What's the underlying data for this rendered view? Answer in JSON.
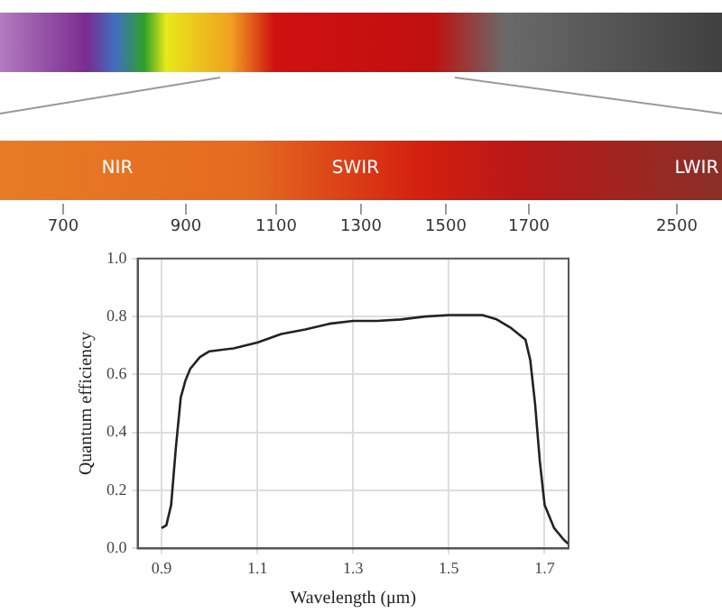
{
  "chart_data": {
    "type": "line",
    "xlabel": "Wavelength (μm)",
    "ylabel": "Quantum efficiency",
    "annotations": [
      "NIR",
      "SWIR",
      "LWIR",
      "700",
      "900",
      "1100",
      "1300",
      "1500",
      "1700",
      "2500"
    ],
    "series": [
      {
        "color": "#222222",
        "x": [
          0.9,
          0.91,
          0.92,
          0.93,
          0.94,
          0.95,
          0.96,
          0.98,
          1.0,
          1.05,
          1.1,
          1.15,
          1.2,
          1.25,
          1.3,
          1.35,
          1.4,
          1.45,
          1.5,
          1.55,
          1.57,
          1.6,
          1.63,
          1.66,
          1.67,
          1.68,
          1.69,
          1.7,
          1.72,
          1.74,
          1.75
        ],
        "values": [
          0.07,
          0.08,
          0.15,
          0.35,
          0.52,
          0.58,
          0.62,
          0.66,
          0.68,
          0.69,
          0.71,
          0.74,
          0.755,
          0.775,
          0.785,
          0.785,
          0.79,
          0.8,
          0.805,
          0.805,
          0.805,
          0.79,
          0.76,
          0.72,
          0.65,
          0.5,
          0.3,
          0.15,
          0.07,
          0.03,
          0.015
        ]
      }
    ],
    "xlim": [
      0.85,
      1.75
    ],
    "xticks": [
      0.9,
      1.1,
      1.3,
      1.5,
      1.7
    ],
    "ylim": [
      0,
      1
    ],
    "yticks": [
      {
        "value": 0,
        "label": "0.0"
      },
      {
        "value": 0.2,
        "label": "0.2"
      },
      {
        "value": 0.4,
        "label": "0.4"
      },
      {
        "value": 0.6,
        "label": "0.6"
      },
      {
        "value": 0.8,
        "label": "0.8"
      },
      {
        "value": 1,
        "label": "1.0"
      }
    ],
    "grid": true,
    "marker": "none",
    "line_style": "solid"
  }
}
